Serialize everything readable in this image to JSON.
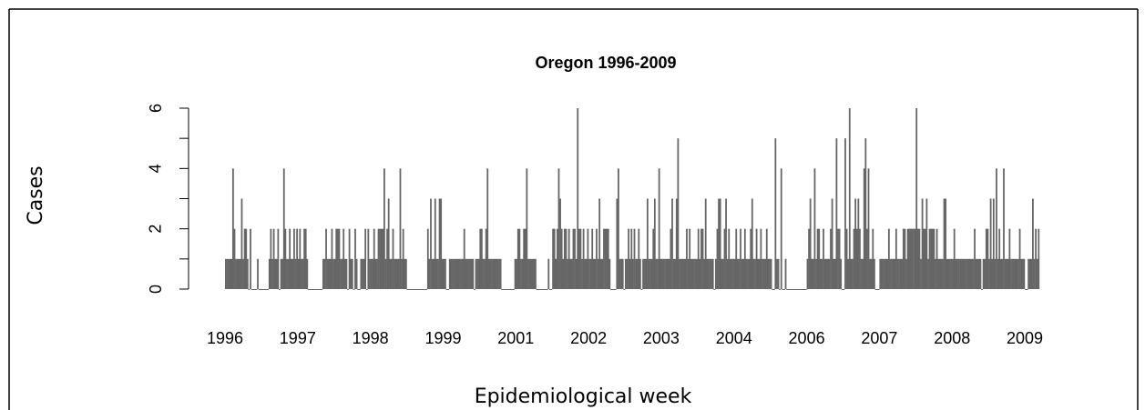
{
  "chart_data": {
    "type": "bar",
    "title": "Oregon 1996-2009",
    "x_label": "Epidemiological week",
    "y_label": "Cases",
    "color": "#666666",
    "xlim": [
      0,
      560
    ],
    "ylim": [
      0,
      6
    ],
    "yticks": [
      0,
      2,
      4,
      6
    ],
    "yminorticks": [
      1,
      3,
      5
    ],
    "xticks": [
      {
        "value": 0,
        "label": "1996"
      },
      {
        "value": 50,
        "label": "1997"
      },
      {
        "value": 100,
        "label": "1998"
      },
      {
        "value": 150,
        "label": "1999"
      },
      {
        "value": 200,
        "label": "2001"
      },
      {
        "value": 250,
        "label": "2002"
      },
      {
        "value": 300,
        "label": "2003"
      },
      {
        "value": 350,
        "label": "2004"
      },
      {
        "value": 400,
        "label": "2006"
      },
      {
        "value": 450,
        "label": "2007"
      },
      {
        "value": 500,
        "label": "2008"
      },
      {
        "value": 550,
        "label": "2009"
      }
    ],
    "values": [
      1,
      1,
      1,
      1,
      1,
      4,
      2,
      1,
      1,
      1,
      1,
      3,
      1,
      2,
      2,
      1,
      0,
      2,
      0,
      0,
      0,
      0,
      1,
      0,
      0,
      0,
      0,
      0,
      0,
      0,
      1,
      2,
      1,
      2,
      1,
      1,
      2,
      0,
      1,
      1,
      4,
      2,
      1,
      1,
      2,
      1,
      1,
      2,
      1,
      2,
      1,
      2,
      1,
      1,
      2,
      2,
      1,
      0,
      0,
      0,
      0,
      0,
      0,
      0,
      0,
      0,
      0,
      1,
      1,
      2,
      1,
      1,
      1,
      2,
      1,
      1,
      2,
      2,
      2,
      1,
      1,
      2,
      1,
      1,
      0,
      2,
      1,
      1,
      0,
      2,
      1,
      0,
      0,
      1,
      1,
      1,
      2,
      0,
      2,
      1,
      1,
      1,
      2,
      1,
      1,
      2,
      2,
      2,
      2,
      4,
      1,
      2,
      3,
      1,
      1,
      2,
      1,
      1,
      1,
      1,
      4,
      1,
      2,
      1,
      1,
      0,
      0,
      0,
      0,
      0,
      0,
      0,
      0,
      0,
      0,
      0,
      0,
      0,
      0,
      2,
      1,
      3,
      1,
      1,
      3,
      1,
      1,
      3,
      3,
      1,
      1,
      1,
      0,
      0,
      1,
      1,
      1,
      1,
      1,
      1,
      1,
      1,
      1,
      1,
      2,
      1,
      1,
      1,
      1,
      1,
      1,
      0,
      1,
      1,
      1,
      2,
      2,
      1,
      1,
      2,
      4,
      1,
      1,
      1,
      1,
      1,
      1,
      1,
      1,
      1,
      0,
      0,
      0,
      0,
      0,
      0,
      0,
      0,
      0,
      1,
      1,
      2,
      2,
      1,
      1,
      2,
      2,
      4,
      1,
      1,
      1,
      1,
      1,
      1,
      0,
      0,
      0,
      0,
      0,
      0,
      0,
      0,
      1,
      0,
      0,
      2,
      2,
      1,
      2,
      4,
      3,
      2,
      1,
      2,
      2,
      1,
      2,
      1,
      1,
      2,
      2,
      1,
      6,
      2,
      2,
      1,
      2,
      1,
      1,
      2,
      1,
      1,
      2,
      1,
      1,
      2,
      1,
      3,
      1,
      1,
      2,
      2,
      2,
      2,
      1,
      0,
      0,
      0,
      0,
      3,
      4,
      1,
      1,
      1,
      0,
      1,
      1,
      2,
      1,
      2,
      1,
      2,
      1,
      1,
      2,
      1,
      0,
      1,
      1,
      1,
      3,
      1,
      1,
      1,
      2,
      3,
      1,
      1,
      4,
      1,
      1,
      1,
      1,
      1,
      1,
      1,
      2,
      3,
      1,
      1,
      3,
      5,
      1,
      1,
      1,
      1,
      1,
      2,
      1,
      2,
      1,
      1,
      1,
      1,
      1,
      2,
      1,
      2,
      2,
      1,
      3,
      1,
      1,
      1,
      1,
      1,
      0,
      1,
      2,
      3,
      3,
      1,
      1,
      2,
      3,
      1,
      2,
      1,
      1,
      1,
      1,
      2,
      1,
      1,
      2,
      1,
      1,
      2,
      1,
      1,
      1,
      2,
      3,
      1,
      1,
      2,
      1,
      1,
      2,
      1,
      1,
      1,
      2,
      1,
      1,
      1,
      0,
      0,
      5,
      1,
      1,
      0,
      4,
      0,
      0,
      1,
      0,
      0,
      0,
      0,
      0,
      0,
      0,
      0,
      0,
      0,
      0,
      0,
      0,
      0,
      1,
      2,
      3,
      1,
      1,
      4,
      1,
      2,
      2,
      1,
      1,
      2,
      1,
      1,
      1,
      1,
      2,
      3,
      1,
      1,
      5,
      2,
      2,
      1,
      0,
      0,
      5,
      2,
      1,
      6,
      1,
      1,
      2,
      3,
      2,
      3,
      2,
      1,
      1,
      4,
      5,
      2,
      4,
      1,
      1,
      2,
      1,
      0,
      0,
      0,
      1,
      1,
      1,
      1,
      1,
      1,
      2,
      1,
      1,
      1,
      1,
      2,
      1,
      1,
      1,
      1,
      2,
      2,
      1,
      2,
      2,
      2,
      2,
      2,
      2,
      6,
      2,
      2,
      1,
      3,
      2,
      2,
      3,
      1,
      2,
      2,
      2,
      2,
      1,
      2,
      1,
      1,
      1,
      1,
      3,
      3,
      1,
      1,
      1,
      1,
      1,
      2,
      1,
      1,
      1,
      1,
      1,
      1,
      1,
      1,
      1,
      1,
      1,
      1,
      1,
      2,
      1,
      1,
      1,
      1,
      0,
      1,
      1,
      2,
      2,
      1,
      3,
      1,
      3,
      1,
      4,
      1,
      2,
      1,
      1,
      4,
      1,
      1,
      1,
      2,
      1,
      1,
      1,
      1,
      1,
      1,
      2,
      1,
      1,
      1,
      0,
      0,
      1,
      1,
      1,
      3,
      1,
      2,
      1,
      2
    ]
  }
}
